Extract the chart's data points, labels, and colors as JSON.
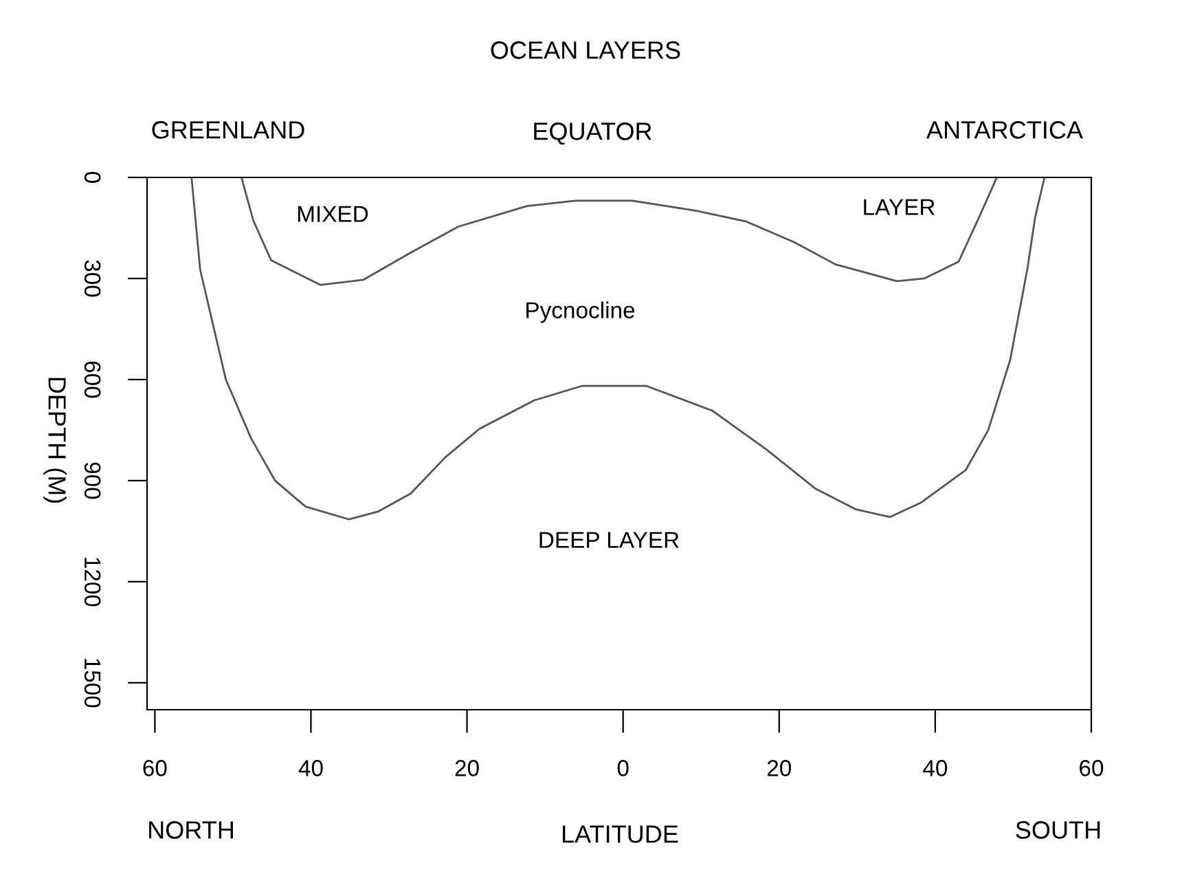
{
  "chart_data": {
    "type": "line",
    "title": "OCEAN LAYERS",
    "xlabel": "LATITUDE",
    "ylabel": "DEPTH (M)",
    "series": [
      {
        "color": "#555555",
        "x": [
          -48.9,
          -47.4,
          -45.1,
          -38.8,
          -33.3,
          -27.2,
          -21.1,
          -12.3,
          -6.1,
          1.2,
          9.6,
          15.8,
          21.9,
          27.2,
          35.1,
          38.6,
          43.0,
          45.6,
          47.9
        ],
        "values": [
          0,
          127,
          246,
          319,
          304,
          223,
          146,
          85,
          69,
          69,
          100,
          131,
          192,
          258,
          308,
          300,
          250,
          119,
          0
        ]
      },
      {
        "color": "#555555",
        "x": [
          -55.3,
          -54.2,
          -50.9,
          -47.7,
          -44.6,
          -40.7,
          -35.1,
          -31.4,
          -27.2,
          -22.8,
          -18.4,
          -11.4,
          -5.3,
          3.0,
          11.4,
          18.4,
          24.6,
          29.8,
          34.2,
          38.2,
          43.9,
          46.8,
          49.6,
          51.8,
          52.8,
          54.0
        ],
        "values": [
          0,
          273,
          600,
          773,
          900,
          977,
          1015,
          992,
          938,
          831,
          746,
          662,
          619,
          619,
          692,
          808,
          923,
          985,
          1008,
          965,
          869,
          750,
          542,
          273,
          119,
          0
        ]
      }
    ],
    "xlim": [
      -61,
      60
    ],
    "xticks": [
      {
        "value": -60,
        "label": "60"
      },
      {
        "value": -40,
        "label": "40"
      },
      {
        "value": -20,
        "label": "20"
      },
      0,
      20,
      40,
      60
    ],
    "ylim": [
      1580,
      0
    ],
    "yticks": [
      0,
      300,
      600,
      900,
      1200,
      1500
    ],
    "grid": false,
    "marker": "none",
    "line_style": "solid",
    "annotations": [
      "MIXED",
      "LAYER",
      "Pycnocline",
      "DEEP LAYER",
      "GREENLAND",
      "EQUATOR",
      "ANTARCTICA",
      "NORTH",
      "SOUTH"
    ]
  }
}
